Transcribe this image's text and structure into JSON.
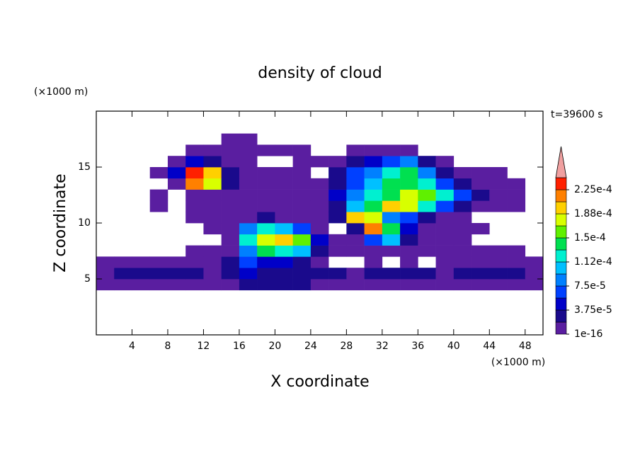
{
  "chart_data": {
    "type": "contour",
    "title": "density of cloud",
    "xlabel": "X coordinate",
    "ylabel": "Z coordinate",
    "x_unit_label": "(×1000 m)",
    "y_unit_label": "(×1000 m)",
    "annotation": "t=39600 s",
    "xlim": [
      0,
      50
    ],
    "ylim": [
      0,
      20
    ],
    "xticks": [
      4,
      8,
      12,
      16,
      20,
      24,
      28,
      32,
      36,
      40,
      44,
      48
    ],
    "yticks": [
      5,
      10,
      15
    ],
    "x": [
      1,
      3,
      5,
      7,
      9,
      11,
      13,
      15,
      17,
      19,
      21,
      23,
      25,
      27,
      29,
      31,
      33,
      35,
      37,
      39,
      41,
      43,
      45,
      47,
      49
    ],
    "y": [
      4.5,
      5.5,
      6.5,
      7.5,
      8.5,
      9.5,
      10.5,
      11.5,
      12.5,
      13.5,
      14.5,
      15.5,
      16.5,
      17.5
    ],
    "values": [
      [
        9e-06,
        9e-06,
        9e-06,
        9e-06,
        9e-06,
        9e-06,
        9e-06,
        9e-06,
        2.8e-05,
        2.8e-05,
        2.8e-05,
        2.8e-05,
        9e-06,
        9e-06,
        9e-06,
        9e-06,
        9e-06,
        9e-06,
        9e-06,
        9e-06,
        9e-06,
        9e-06,
        9e-06,
        9e-06,
        9e-06
      ],
      [
        9e-06,
        2.8e-05,
        2.8e-05,
        2.8e-05,
        2.8e-05,
        2.8e-05,
        9e-06,
        2.8e-05,
        4.7e-05,
        2.8e-05,
        2.8e-05,
        2.8e-05,
        2.8e-05,
        2.8e-05,
        9e-06,
        2.8e-05,
        2.8e-05,
        2.8e-05,
        2.8e-05,
        9e-06,
        2.8e-05,
        2.8e-05,
        2.8e-05,
        2.8e-05,
        9e-06
      ],
      [
        9e-06,
        9e-06,
        9e-06,
        9e-06,
        9e-06,
        9e-06,
        9e-06,
        2.8e-05,
        6.6e-05,
        4.7e-05,
        4.7e-05,
        2.8e-05,
        9e-06,
        null,
        null,
        9e-06,
        null,
        9e-06,
        null,
        9e-06,
        9e-06,
        9e-06,
        9e-06,
        9e-06,
        9e-06
      ],
      [
        null,
        null,
        null,
        null,
        null,
        9e-06,
        9e-06,
        9e-06,
        8.4e-05,
        0.000141,
        0.000122,
        0.000103,
        2.8e-05,
        9e-06,
        9e-06,
        9e-06,
        9e-06,
        9e-06,
        9e-06,
        9e-06,
        9e-06,
        9e-06,
        9e-06,
        9e-06,
        null
      ],
      [
        null,
        null,
        null,
        null,
        null,
        null,
        null,
        9e-06,
        0.000122,
        0.000178,
        0.000197,
        0.000159,
        4.7e-05,
        9e-06,
        9e-06,
        6.6e-05,
        0.000103,
        2.8e-05,
        9e-06,
        9e-06,
        9e-06,
        null,
        null,
        null,
        null
      ],
      [
        null,
        null,
        null,
        null,
        null,
        null,
        9e-06,
        9e-06,
        8.4e-05,
        0.000122,
        0.000103,
        6.6e-05,
        9e-06,
        null,
        2.8e-05,
        0.000216,
        0.000141,
        4.7e-05,
        9e-06,
        9e-06,
        9e-06,
        9e-06,
        null,
        null,
        null
      ],
      [
        null,
        null,
        null,
        null,
        null,
        9e-06,
        9e-06,
        9e-06,
        9e-06,
        2.8e-05,
        9e-06,
        9e-06,
        9e-06,
        2.8e-05,
        0.000197,
        0.000178,
        8.4e-05,
        6.6e-05,
        2.8e-05,
        9e-06,
        9e-06,
        null,
        null,
        null,
        null
      ],
      [
        null,
        null,
        null,
        9e-06,
        null,
        9e-06,
        9e-06,
        9e-06,
        9e-06,
        9e-06,
        9e-06,
        9e-06,
        9e-06,
        2.8e-05,
        0.000103,
        0.000141,
        0.000197,
        0.000178,
        0.000122,
        6.6e-05,
        2.8e-05,
        9e-06,
        9e-06,
        9e-06,
        null
      ],
      [
        null,
        null,
        null,
        9e-06,
        null,
        9e-06,
        9e-06,
        9e-06,
        9e-06,
        9e-06,
        9e-06,
        9e-06,
        9e-06,
        4.7e-05,
        8.4e-05,
        0.000122,
        0.000141,
        0.000178,
        0.000159,
        0.000122,
        6.6e-05,
        2.8e-05,
        9e-06,
        9e-06,
        null
      ],
      [
        null,
        null,
        null,
        null,
        9e-06,
        0.000216,
        0.000178,
        2.8e-05,
        9e-06,
        9e-06,
        9e-06,
        9e-06,
        9e-06,
        2.8e-05,
        6.6e-05,
        0.000103,
        0.000141,
        0.000141,
        0.000122,
        6.6e-05,
        2.8e-05,
        9e-06,
        9e-06,
        9e-06,
        null
      ],
      [
        null,
        null,
        null,
        9e-06,
        4.7e-05,
        0.000234,
        0.000197,
        2.8e-05,
        9e-06,
        9e-06,
        9e-06,
        9e-06,
        null,
        2.8e-05,
        6.6e-05,
        8.4e-05,
        0.000122,
        0.000141,
        8.4e-05,
        2.8e-05,
        9e-06,
        9e-06,
        9e-06,
        null,
        null
      ],
      [
        null,
        null,
        null,
        null,
        9e-06,
        4.7e-05,
        2.8e-05,
        9e-06,
        9e-06,
        null,
        null,
        9e-06,
        9e-06,
        9e-06,
        2.8e-05,
        4.7e-05,
        6.6e-05,
        8.4e-05,
        2.8e-05,
        9e-06,
        null,
        null,
        null,
        null,
        null
      ],
      [
        null,
        null,
        null,
        null,
        null,
        9e-06,
        9e-06,
        9e-06,
        9e-06,
        9e-06,
        9e-06,
        9e-06,
        null,
        null,
        9e-06,
        9e-06,
        9e-06,
        9e-06,
        null,
        null,
        null,
        null,
        null,
        null,
        null
      ],
      [
        null,
        null,
        null,
        null,
        null,
        null,
        null,
        9e-06,
        9e-06,
        null,
        null,
        null,
        null,
        null,
        null,
        null,
        null,
        null,
        null,
        null,
        null,
        null,
        null,
        null,
        null
      ]
    ],
    "levels": [
      1e-16,
      1.875e-05,
      3.75e-05,
      5.625e-05,
      7.5e-05,
      9.375e-05,
      0.0001125,
      0.00013125,
      0.00015,
      0.00016875,
      0.0001875,
      0.00020625,
      0.000225,
      0.00024375
    ],
    "colors": [
      "#5a1ea0",
      "#1a0a8c",
      "#0000c8",
      "#0040ff",
      "#0080ff",
      "#00c0ff",
      "#00f0d0",
      "#00e050",
      "#60f000",
      "#d8ff00",
      "#ffd000",
      "#ff8000",
      "#ff2000"
    ],
    "extend_color": "#f0a0a0",
    "colorbar_ticks": [
      {
        "value": 1e-16,
        "label": "1e-16"
      },
      {
        "value": 3.75e-05,
        "label": "3.75e-5"
      },
      {
        "value": 7.5e-05,
        "label": "7.5e-5"
      },
      {
        "value": 0.0001125,
        "label": "1.12e-4"
      },
      {
        "value": 0.00015,
        "label": "1.5e-4"
      },
      {
        "value": 0.0001875,
        "label": "1.88e-4"
      },
      {
        "value": 0.000225,
        "label": "2.25e-4"
      }
    ]
  }
}
